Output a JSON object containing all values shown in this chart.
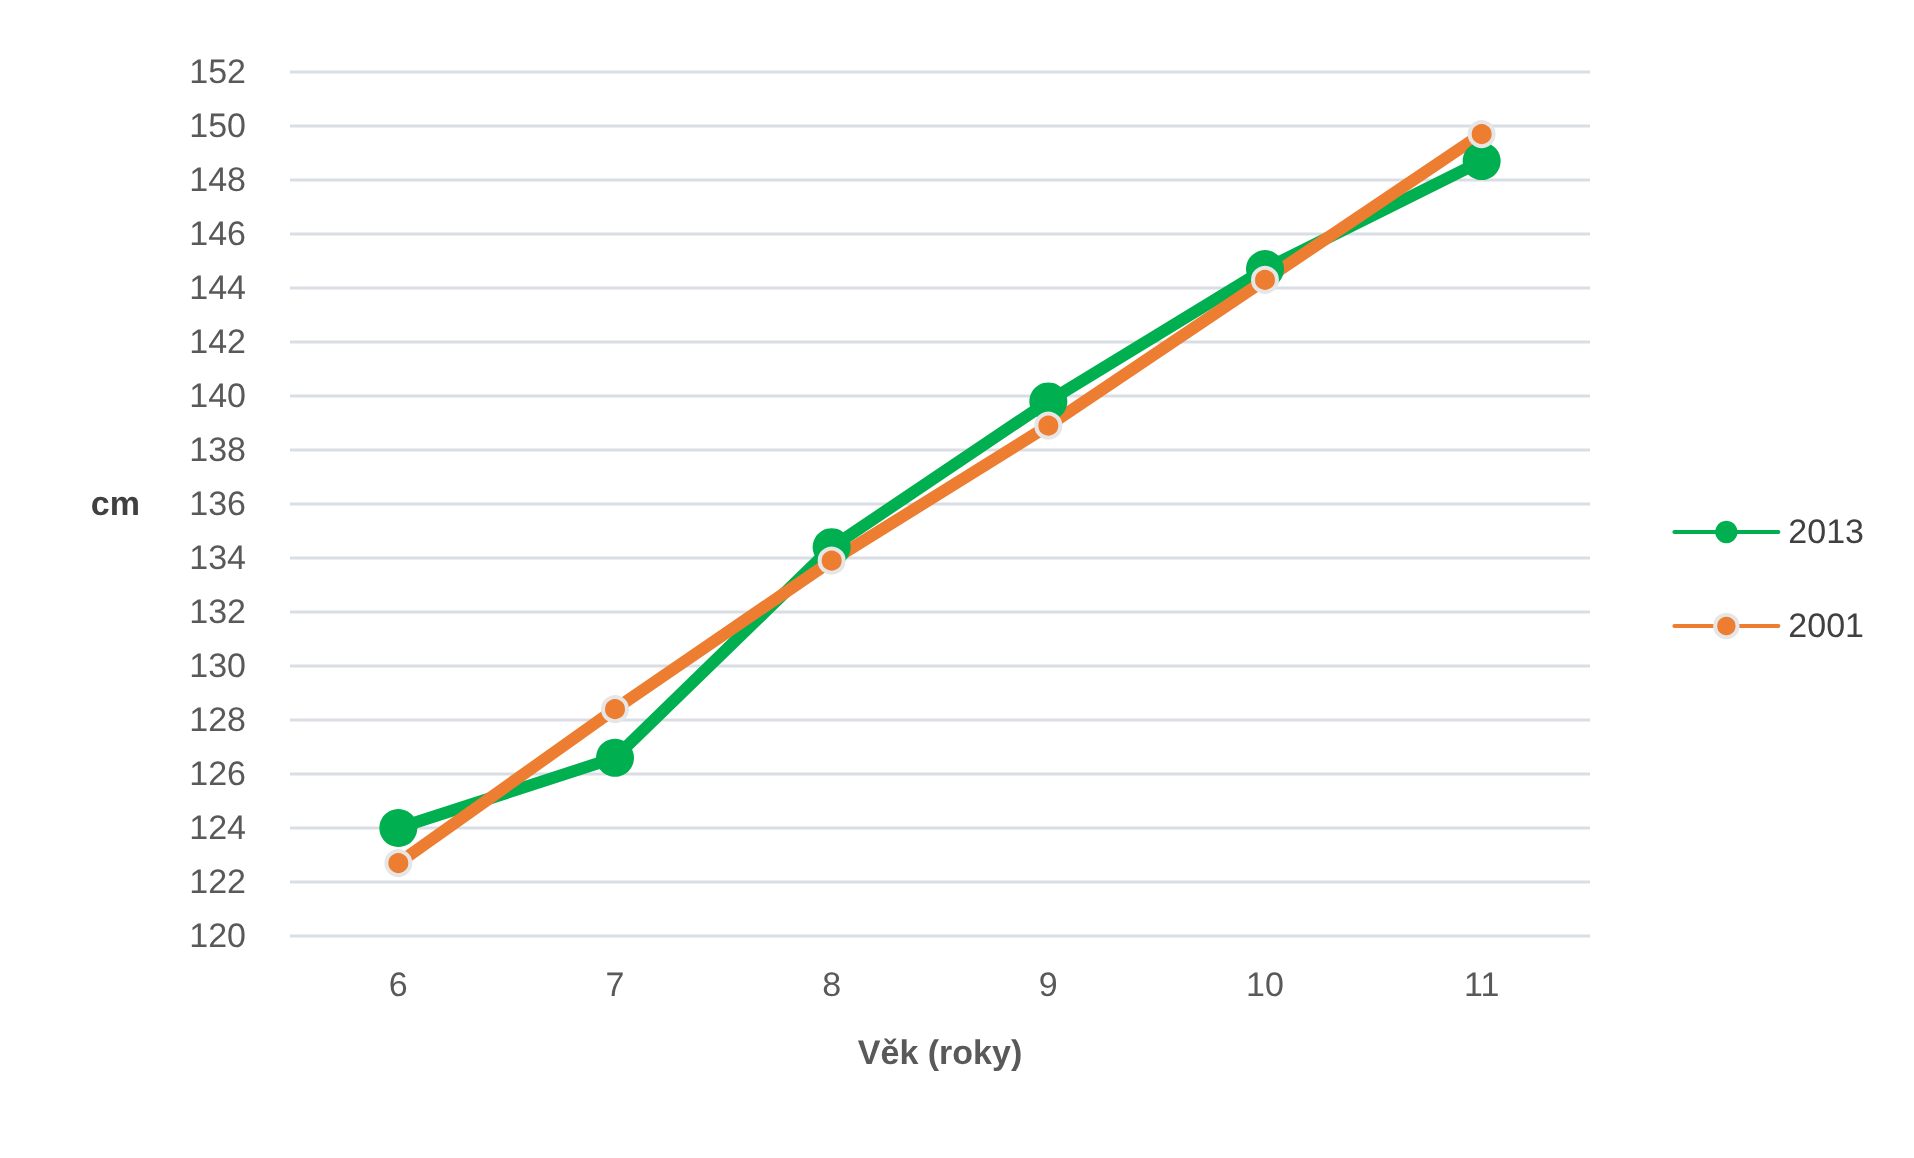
{
  "chart_data": {
    "type": "line",
    "xlabel": "Věk (roky)",
    "ylabel": "cm",
    "categories": [
      "6",
      "7",
      "8",
      "9",
      "10",
      "11"
    ],
    "series": [
      {
        "name": "2013",
        "color": "#00b050",
        "values": [
          124.0,
          126.6,
          134.4,
          139.8,
          144.7,
          148.7
        ]
      },
      {
        "name": "2001",
        "color": "#ed7d31",
        "values": [
          122.7,
          128.4,
          133.9,
          138.9,
          144.3,
          149.7
        ]
      }
    ],
    "ylim": [
      120,
      152
    ],
    "yticks": [
      120,
      122,
      124,
      126,
      128,
      130,
      132,
      134,
      136,
      138,
      140,
      142,
      144,
      146,
      148,
      150,
      152
    ],
    "grid": "y",
    "legend": "right",
    "marker": "circle",
    "line_style": "solid"
  }
}
